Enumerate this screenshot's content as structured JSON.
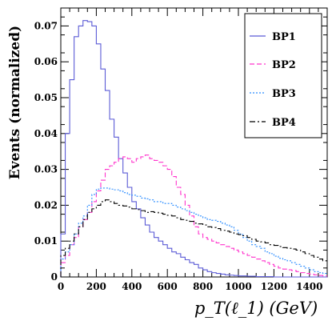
{
  "chart_data": {
    "type": "line",
    "step": true,
    "xlabel": "p_T(ℓ_1) (GeV)",
    "ylabel": "Events (normalized)",
    "xlim": [
      0,
      1500
    ],
    "ylim": [
      0,
      0.075
    ],
    "x_ticks": [
      0,
      200,
      400,
      600,
      800,
      1000,
      1200,
      1400
    ],
    "x_tick_labels": [
      "0",
      "200",
      "400",
      "600",
      "800",
      "1000",
      "1200",
      "1400"
    ],
    "y_ticks": [
      0,
      0.01,
      0.02,
      0.03,
      0.04,
      0.05,
      0.06,
      0.07
    ],
    "y_tick_labels": [
      "0",
      "0.01",
      "0.02",
      "0.03",
      "0.04",
      "0.05",
      "0.06",
      "0.07"
    ],
    "legend_placement": "top-right",
    "bin_width": 25,
    "bin_starts": [
      0,
      25,
      50,
      75,
      100,
      125,
      150,
      175,
      200,
      225,
      250,
      275,
      300,
      325,
      350,
      375,
      400,
      425,
      450,
      475,
      500,
      525,
      550,
      575,
      600,
      625,
      650,
      675,
      700,
      725,
      750,
      775,
      800,
      825,
      850,
      875,
      900,
      925,
      950,
      975,
      1000,
      1025,
      1050,
      1075,
      1100,
      1125,
      1150,
      1175,
      1200,
      1225,
      1250,
      1275,
      1300,
      1325,
      1350,
      1375,
      1400,
      1425,
      1450,
      1475
    ],
    "series": [
      {
        "name": "BP1",
        "color": "#5b5bd6",
        "dash": "solid",
        "values": [
          0.012,
          0.04,
          0.055,
          0.067,
          0.07,
          0.0715,
          0.0712,
          0.07,
          0.065,
          0.058,
          0.052,
          0.044,
          0.039,
          0.033,
          0.029,
          0.025,
          0.021,
          0.019,
          0.0165,
          0.0145,
          0.0125,
          0.011,
          0.01,
          0.009,
          0.008,
          0.007,
          0.0065,
          0.0055,
          0.0048,
          0.004,
          0.0035,
          0.0025,
          0.002,
          0.0015,
          0.0012,
          0.001,
          0.0008,
          0.0006,
          0.0005,
          0.0004,
          0.0003,
          0.0003,
          0.0002,
          0.0002,
          0.0001,
          0.0001,
          0.0001,
          0.0001,
          0,
          0,
          0,
          0,
          0,
          0,
          0,
          0,
          0,
          0,
          0,
          0
        ]
      },
      {
        "name": "BP2",
        "color": "#ff33cc",
        "dash": "6 3",
        "values": [
          0.004,
          0.006,
          0.009,
          0.011,
          0.014,
          0.016,
          0.018,
          0.021,
          0.024,
          0.027,
          0.03,
          0.031,
          0.032,
          0.033,
          0.0335,
          0.033,
          0.032,
          0.033,
          0.0335,
          0.034,
          0.033,
          0.0325,
          0.032,
          0.031,
          0.03,
          0.028,
          0.025,
          0.023,
          0.02,
          0.017,
          0.014,
          0.012,
          0.011,
          0.0105,
          0.01,
          0.0095,
          0.009,
          0.0085,
          0.008,
          0.0075,
          0.007,
          0.0065,
          0.006,
          0.0055,
          0.005,
          0.0045,
          0.004,
          0.0035,
          0.003,
          0.0025,
          0.0022,
          0.002,
          0.0018,
          0.0015,
          0.0012,
          0.001,
          0.0008,
          0.0006,
          0.0004,
          0.0003
        ]
      },
      {
        "name": "BP3",
        "color": "#2a8cff",
        "dash": "2 2",
        "values": [
          0.005,
          0.007,
          0.009,
          0.012,
          0.015,
          0.017,
          0.02,
          0.023,
          0.0245,
          0.0248,
          0.0248,
          0.0245,
          0.0243,
          0.024,
          0.0235,
          0.023,
          0.0228,
          0.0225,
          0.022,
          0.0218,
          0.0215,
          0.021,
          0.021,
          0.0205,
          0.0205,
          0.02,
          0.0195,
          0.019,
          0.0185,
          0.018,
          0.0175,
          0.017,
          0.0165,
          0.016,
          0.0158,
          0.0155,
          0.015,
          0.0145,
          0.014,
          0.013,
          0.012,
          0.011,
          0.01,
          0.009,
          0.0085,
          0.008,
          0.007,
          0.0065,
          0.0058,
          0.0052,
          0.0048,
          0.0045,
          0.004,
          0.0035,
          0.003,
          0.0025,
          0.002,
          0.0015,
          0.0012,
          0.001
        ]
      },
      {
        "name": "BP4",
        "color": "#000000",
        "dash": "7 3 2 3",
        "values": [
          0.006,
          0.008,
          0.01,
          0.012,
          0.014,
          0.016,
          0.018,
          0.019,
          0.02,
          0.021,
          0.0215,
          0.021,
          0.0205,
          0.02,
          0.0198,
          0.0195,
          0.019,
          0.0188,
          0.0185,
          0.018,
          0.0182,
          0.018,
          0.0178,
          0.0175,
          0.0172,
          0.017,
          0.0165,
          0.016,
          0.0158,
          0.0155,
          0.015,
          0.0148,
          0.0145,
          0.014,
          0.0138,
          0.0135,
          0.013,
          0.0128,
          0.0125,
          0.012,
          0.0118,
          0.0115,
          0.011,
          0.0105,
          0.01,
          0.0098,
          0.0095,
          0.009,
          0.0088,
          0.0085,
          0.0082,
          0.008,
          0.0078,
          0.0075,
          0.007,
          0.0065,
          0.006,
          0.0055,
          0.005,
          0.0045
        ]
      }
    ]
  }
}
